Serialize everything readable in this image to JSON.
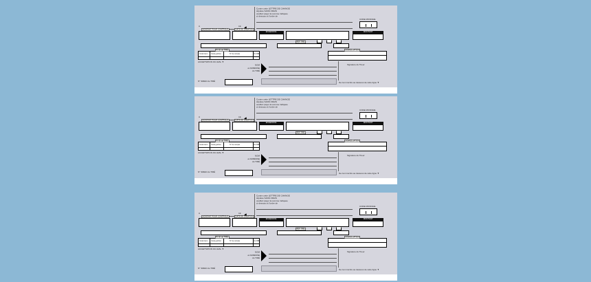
{
  "page": {
    "background_color": "#8cb8d5",
    "forms_count": 3
  },
  "form": {
    "paper_color": "#d6d6de",
    "accent_black": "#111111",
    "header_lines": [
      "Contre cette LETTRE DE CHANGE",
      "stipulée SANS FRAIS",
      "veuillez payer la somme indiquée",
      "ci-dessous à l'ordre de"
    ],
    "code_monnaie_label": "CODE MONNAIE",
    "place_label": "A",
    "date_label": "LE",
    "fields": {
      "montant_controle": "MONTANT POUR CONTRÔLE",
      "date_creation": "DATE DE CRÉATION",
      "echeance": "ÉCHÉANCE",
      "ref_tire": "RÉF. TIRÉ",
      "montant": "MONTANT",
      "rib_tire": "R.I.B. du TIRÉ",
      "rib_columns": [
        "Code banc.",
        "Code guichet",
        "N° de compte",
        "clé RIB"
      ],
      "domiciliation": "DOMICILIATION"
    },
    "acceptation_label": "ACCEPTATION OU AVAL ▼",
    "tire_block": [
      "NOM",
      "et ADRESSE",
      "du TIRÉ"
    ],
    "signature_label": "Signature du Tireur",
    "siren_label": "N° SIREN du TIRÉ",
    "footer_note": "Ne rien inscrire au dessous de cette ligne ▼"
  }
}
